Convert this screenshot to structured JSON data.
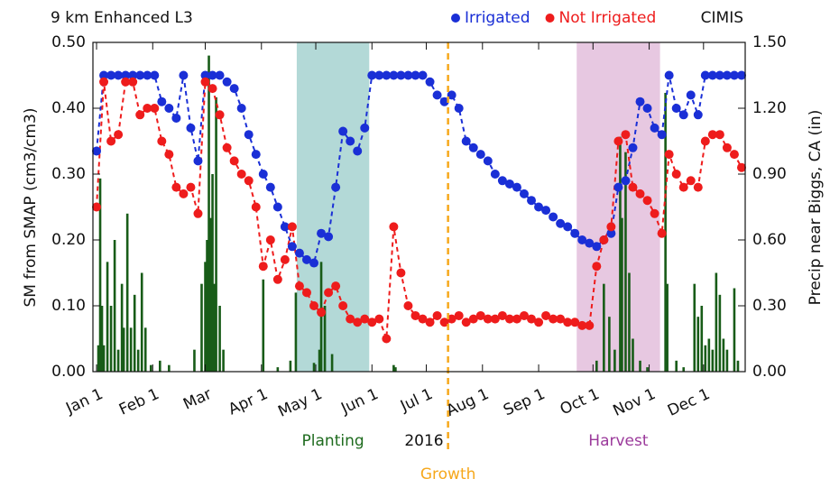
{
  "chart_data": {
    "type": "scatter",
    "title": "9 km Enhanced L3",
    "source_label": "CIMIS",
    "ylabel": "SM from SMAP (cm3/cm3)",
    "y2label": "Precip near Biggs, CA (in)",
    "year_label": "2016",
    "xlim": [
      -2,
      358
    ],
    "xticks": [
      {
        "value": 0,
        "label": "Jan 1"
      },
      {
        "value": 31,
        "label": "Feb 1"
      },
      {
        "value": 60,
        "label": "Mar"
      },
      {
        "value": 91,
        "label": "Apr 1"
      },
      {
        "value": 121,
        "label": "May 1"
      },
      {
        "value": 152,
        "label": "Jun 1"
      },
      {
        "value": 182,
        "label": "Jul 1"
      },
      {
        "value": 213,
        "label": "Aug 1"
      },
      {
        "value": 244,
        "label": "Sep 1"
      },
      {
        "value": 274,
        "label": "Oct 1"
      },
      {
        "value": 305,
        "label": "Nov 1"
      },
      {
        "value": 335,
        "label": "Dec 1"
      }
    ],
    "ylim": [
      0,
      0.5
    ],
    "yticks": [
      {
        "value": 0,
        "label": "0.00"
      },
      {
        "value": 0.1,
        "label": "0.10"
      },
      {
        "value": 0.2,
        "label": "0.20"
      },
      {
        "value": 0.3,
        "label": "0.30"
      },
      {
        "value": 0.4,
        "label": "0.40"
      },
      {
        "value": 0.5,
        "label": "0.50"
      }
    ],
    "y2lim": [
      0,
      1.5
    ],
    "y2ticks": [
      {
        "value": 0,
        "label": "0.00"
      },
      {
        "value": 0.3,
        "label": "0.30"
      },
      {
        "value": 0.6,
        "label": "0.60"
      },
      {
        "value": 0.9,
        "label": "0.90"
      },
      {
        "value": 1.2,
        "label": "1.20"
      },
      {
        "value": 1.5,
        "label": "1.50"
      }
    ],
    "spans": [
      {
        "label": "Planting",
        "start": 110.5,
        "end": 150.5,
        "color": "#b3d9d7",
        "text_color": "#1e6b1e"
      },
      {
        "label": "Harvest",
        "start": 265,
        "end": 311,
        "color": "#e7c8e1",
        "text_color": "#9b3a9b"
      }
    ],
    "vline": {
      "label": "Growth",
      "x": 194,
      "color": "#f6a81c"
    },
    "x": [
      0,
      4,
      8,
      12,
      16,
      20,
      24,
      28,
      32,
      36,
      40,
      44,
      48,
      52,
      56,
      60,
      64,
      68,
      72,
      76,
      80,
      84,
      88,
      92,
      96,
      100,
      104,
      108,
      112,
      116,
      120,
      124,
      128,
      132,
      136,
      140,
      144,
      148,
      152,
      156,
      160,
      164,
      168,
      172,
      176,
      180,
      184,
      188,
      192,
      196,
      200,
      204,
      208,
      212,
      216,
      220,
      224,
      228,
      232,
      236,
      240,
      244,
      248,
      252,
      256,
      260,
      264,
      268,
      272,
      276,
      280,
      284,
      288,
      292,
      296,
      300,
      304,
      308,
      312,
      316,
      320,
      324,
      328,
      332,
      336,
      340,
      344,
      348,
      352,
      356
    ],
    "series": [
      {
        "name": "Irrigated",
        "color": "#1a2fd6",
        "values": [
          0.335,
          0.45,
          0.45,
          0.45,
          0.45,
          0.45,
          0.45,
          0.45,
          0.45,
          0.41,
          0.4,
          0.385,
          0.45,
          0.37,
          0.32,
          0.45,
          0.45,
          0.45,
          0.44,
          0.43,
          0.4,
          0.36,
          0.33,
          0.3,
          0.28,
          0.25,
          0.22,
          0.19,
          0.18,
          0.17,
          0.165,
          0.21,
          0.205,
          0.28,
          0.365,
          0.35,
          0.335,
          0.37,
          0.45,
          0.45,
          0.45,
          0.45,
          0.45,
          0.45,
          0.45,
          0.45,
          0.44,
          0.42,
          0.41,
          0.42,
          0.4,
          0.35,
          0.34,
          0.33,
          0.32,
          0.3,
          0.29,
          0.285,
          0.28,
          0.27,
          0.26,
          0.25,
          0.245,
          0.235,
          0.225,
          0.22,
          0.21,
          0.2,
          0.195,
          0.19,
          0.2,
          0.21,
          0.28,
          0.29,
          0.34,
          0.41,
          0.4,
          0.37,
          0.36,
          0.45,
          0.4,
          0.39,
          0.42,
          0.39,
          0.45,
          0.45,
          0.45,
          0.45,
          0.45,
          0.45
        ]
      },
      {
        "name": "Not Irrigated",
        "color": "#ee1c1c",
        "values": [
          0.25,
          0.44,
          0.35,
          0.36,
          0.44,
          0.44,
          0.39,
          0.4,
          0.4,
          0.35,
          0.33,
          0.28,
          0.27,
          0.28,
          0.24,
          0.44,
          0.43,
          0.39,
          0.34,
          0.32,
          0.3,
          0.29,
          0.25,
          0.16,
          0.2,
          0.14,
          0.17,
          0.22,
          0.13,
          0.12,
          0.1,
          0.09,
          0.12,
          0.13,
          0.1,
          0.08,
          0.075,
          0.08,
          0.075,
          0.08,
          0.05,
          0.22,
          0.15,
          0.1,
          0.085,
          0.08,
          0.075,
          0.085,
          0.075,
          0.08,
          0.085,
          0.075,
          0.08,
          0.085,
          0.08,
          0.08,
          0.085,
          0.08,
          0.08,
          0.085,
          0.08,
          0.075,
          0.085,
          0.08,
          0.08,
          0.075,
          0.075,
          0.07,
          0.07,
          0.16,
          0.2,
          0.22,
          0.35,
          0.36,
          0.28,
          0.27,
          0.26,
          0.24,
          0.21,
          0.33,
          0.3,
          0.28,
          0.29,
          0.28,
          0.35,
          0.36,
          0.36,
          0.34,
          0.33,
          0.31
        ]
      }
    ],
    "bars": {
      "axis": "y2",
      "color": "#185c18",
      "x": [
        1,
        2,
        3,
        4,
        6,
        8,
        10,
        12,
        14,
        15,
        17,
        19,
        21,
        23,
        25,
        27,
        30,
        35,
        40,
        54,
        58,
        60,
        61,
        62,
        63,
        64,
        65,
        66,
        68,
        70,
        92,
        100,
        107,
        110,
        120,
        123,
        124,
        126,
        130,
        164,
        165,
        276,
        280,
        283,
        286,
        289,
        290,
        292,
        294,
        296,
        300,
        304,
        314,
        315,
        320,
        324,
        330,
        332,
        334,
        336,
        338,
        340,
        342,
        344,
        346,
        348,
        352,
        354
      ],
      "values": [
        0.12,
        0.88,
        0.3,
        0.12,
        0.5,
        0.3,
        0.6,
        0.1,
        0.4,
        0.2,
        0.72,
        0.2,
        0.35,
        0.1,
        0.45,
        0.2,
        0.03,
        0.05,
        0.03,
        0.1,
        0.4,
        0.5,
        0.6,
        1.44,
        0.7,
        0.9,
        0.4,
        1.25,
        0.3,
        0.1,
        0.42,
        0.02,
        0.05,
        0.36,
        0.04,
        0.1,
        0.5,
        0.3,
        0.08,
        0.03,
        0.02,
        0.05,
        0.4,
        0.25,
        0.1,
        1.07,
        0.7,
        1.0,
        0.45,
        0.15,
        0.05,
        0.02,
        1.27,
        0.4,
        0.05,
        0.02,
        0.4,
        0.25,
        0.3,
        0.12,
        0.15,
        0.1,
        0.45,
        0.35,
        0.15,
        0.1,
        0.38,
        0.05
      ]
    }
  }
}
